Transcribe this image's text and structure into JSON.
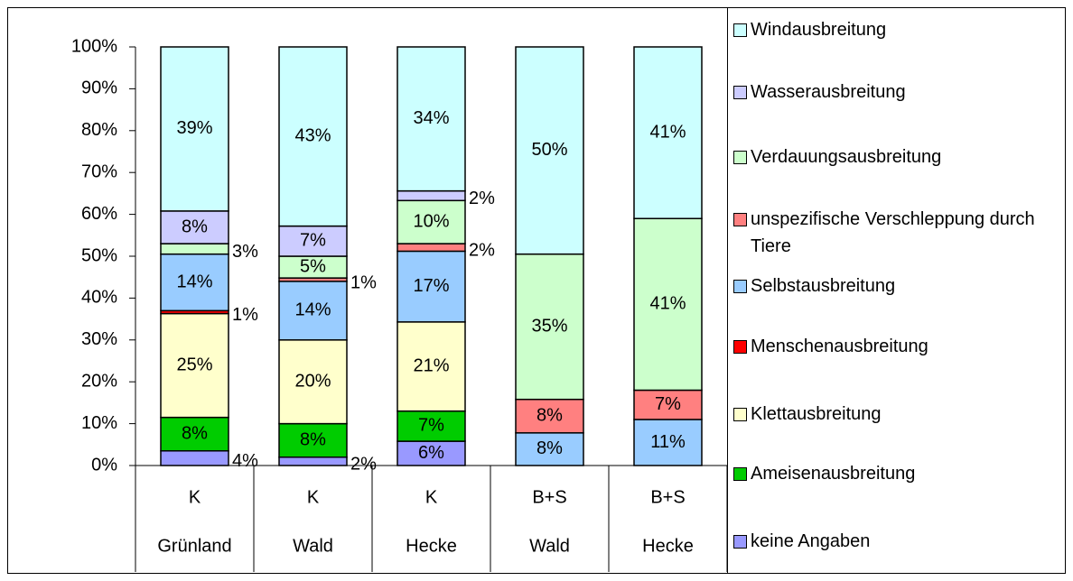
{
  "chart_data": {
    "type": "stacked_bar",
    "categories": [
      [
        "K",
        "Grünland"
      ],
      [
        "K",
        "Wald"
      ],
      [
        "K",
        "Hecke"
      ],
      [
        "B+S",
        "Wald"
      ],
      [
        "B+S",
        "Hecke"
      ]
    ],
    "ylim": [
      0,
      100
    ],
    "yticks": [
      {
        "value": 0,
        "label": "0%"
      },
      {
        "value": 10,
        "label": "10%"
      },
      {
        "value": 20,
        "label": "20%"
      },
      {
        "value": 30,
        "label": "30%"
      },
      {
        "value": 40,
        "label": "40%"
      },
      {
        "value": 50,
        "label": "50%"
      },
      {
        "value": 60,
        "label": "60%"
      },
      {
        "value": 70,
        "label": "70%"
      },
      {
        "value": 80,
        "label": "80%"
      },
      {
        "value": 90,
        "label": "90%"
      },
      {
        "value": 100,
        "label": "100%"
      }
    ],
    "series": [
      {
        "name": "keine Angaben",
        "color": "#9999ff",
        "values": [
          3.5,
          2,
          5.8,
          null,
          null
        ],
        "value_labels": [
          "4%",
          "2%",
          "6%",
          null,
          null
        ]
      },
      {
        "name": "Ameisenausbreitung",
        "color": "#00cc00",
        "values": [
          8,
          8,
          7.2,
          null,
          null
        ],
        "value_labels": [
          "8%",
          "8%",
          "7%",
          null,
          null
        ]
      },
      {
        "name": "Klettausbreitung",
        "color": "#ffffcc",
        "values": [
          24.8,
          20,
          21.3,
          null,
          null
        ],
        "value_labels": [
          "25%",
          "20%",
          "21%",
          null,
          null
        ]
      },
      {
        "name": "Menschenausbreitung",
        "color": "#ff0000",
        "values": [
          0.7,
          null,
          null,
          null,
          null
        ],
        "value_labels": [
          "1%",
          null,
          null,
          null,
          null
        ]
      },
      {
        "name": "Selbstausbreitung",
        "color": "#99ccff",
        "values": [
          13.5,
          14,
          16.9,
          7.8,
          11
        ],
        "value_labels": [
          "14%",
          "14%",
          "17%",
          "8%",
          "11%"
        ]
      },
      {
        "name": "unspezifische Verschleppung durch Tiere",
        "color": "#ff8080",
        "values": [
          null,
          0.8,
          1.8,
          8,
          7
        ],
        "value_labels": [
          null,
          "1%",
          "2%",
          "8%",
          "7%"
        ]
      },
      {
        "name": "Verdauungsausbreitung",
        "color": "#ccffcc",
        "values": [
          2.5,
          5.2,
          10.3,
          34.7,
          41
        ],
        "value_labels": [
          "3%",
          "5%",
          "10%",
          "35%",
          "41%"
        ]
      },
      {
        "name": "Wasserausbreitung",
        "color": "#ccccff",
        "values": [
          7.8,
          7.2,
          2.3,
          null,
          null
        ],
        "value_labels": [
          "8%",
          "7%",
          "2%",
          null,
          null
        ]
      },
      {
        "name": "Windausbreitung",
        "color": "#ccffff",
        "values": [
          39.2,
          42.8,
          34.4,
          49.5,
          41
        ],
        "value_labels": [
          "39%",
          "43%",
          "34%",
          "50%",
          "41%"
        ]
      }
    ]
  }
}
